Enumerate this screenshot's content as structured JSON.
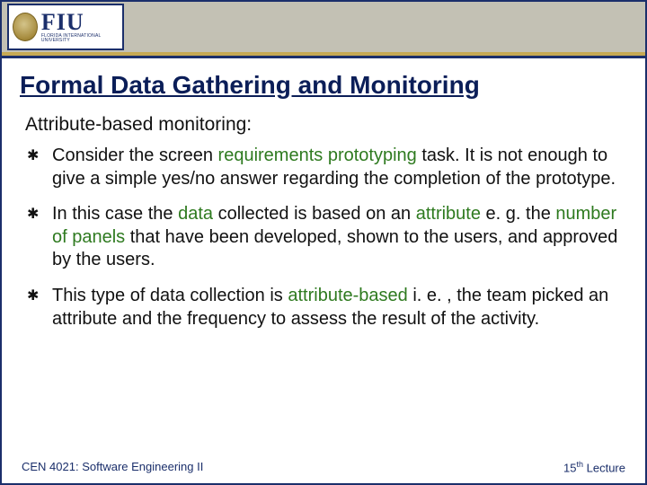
{
  "logo": {
    "acronym": "FIU",
    "sub": "FLORIDA INTERNATIONAL UNIVERSITY"
  },
  "title": "Formal Data Gathering and Monitoring",
  "subhead": "Attribute-based monitoring:",
  "bullets": [
    {
      "parts": [
        {
          "t": "Consider the screen "
        },
        {
          "t": "requirements prototyping",
          "hl": true
        },
        {
          "t": " task. It is not enough to give a simple yes/no answer regarding the completion of the prototype."
        }
      ]
    },
    {
      "parts": [
        {
          "t": "In this case the "
        },
        {
          "t": "data",
          "hl": true
        },
        {
          "t": " collected is based on an "
        },
        {
          "t": "attribute",
          "hl": true
        },
        {
          "t": " e. g. the "
        },
        {
          "t": "number of panels",
          "hl": true
        },
        {
          "t": " that have been developed, shown to the users, and approved by the users."
        }
      ]
    },
    {
      "parts": [
        {
          "t": "This type of data collection is "
        },
        {
          "t": "attribute-based",
          "hl": true
        },
        {
          "t": " i. e. , the team picked an attribute and the frequency to assess the result of the activity."
        }
      ]
    }
  ],
  "footer": {
    "left": "CEN 4021: Software Engineering II",
    "right_num": "15",
    "right_sup": "th",
    "right_suffix": " Lecture"
  },
  "colors": {
    "frame": "#1b2f6b",
    "band": "#c3c1b4",
    "gold": "#c6a954",
    "title": "#0b1e58",
    "highlight": "#2e7a1f",
    "footer": "#1b2f6b"
  },
  "bullet_glyph": "✱"
}
